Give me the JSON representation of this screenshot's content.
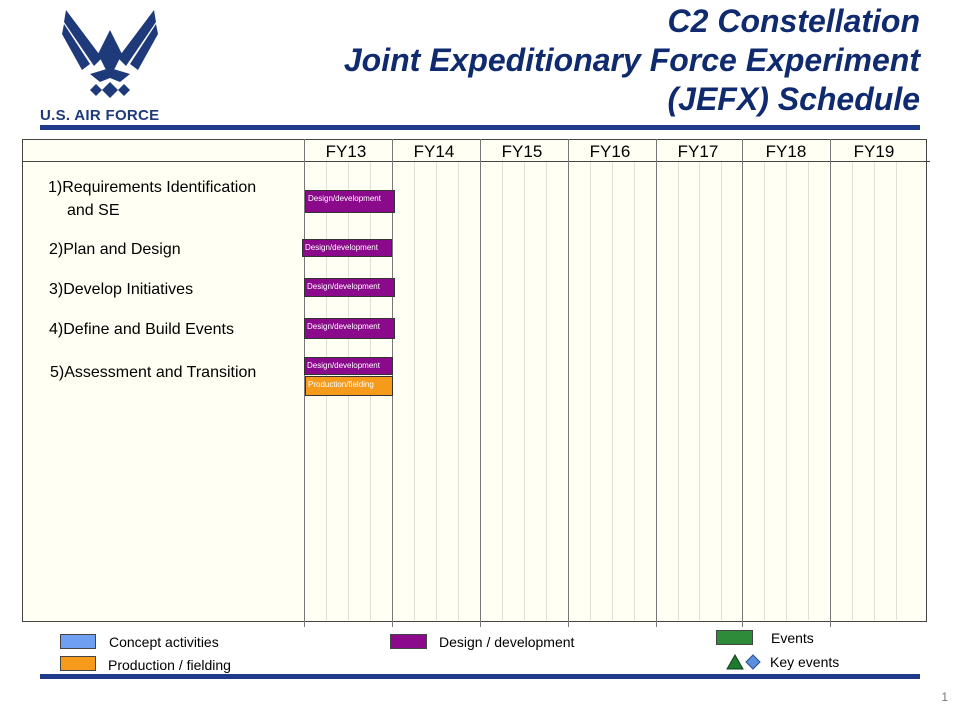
{
  "logo": {
    "text": "U.S. AIR FORCE"
  },
  "title": {
    "line1": "C2 Constellation",
    "line2": "Joint Expeditionary Force Experiment",
    "line3": "(JEFX) Schedule"
  },
  "fiscal_years": [
    "FY13",
    "FY14",
    "FY15",
    "FY16",
    "FY17",
    "FY18",
    "FY19"
  ],
  "tasks": [
    {
      "label_line1": "1)Requirements Identification",
      "label_line2": "and SE",
      "bar": "Design/development"
    },
    {
      "label": "2)Plan and Design",
      "bar": "Design/development"
    },
    {
      "label": "3)Develop Initiatives",
      "bar": "Design/development"
    },
    {
      "label": "4)Define and Build Events",
      "bar": "Design/development"
    },
    {
      "label": "5)Assessment and Transition",
      "bar": "Design/development",
      "bar2": "Production/fielding"
    }
  ],
  "legend": {
    "concept": "Concept activities",
    "production": "Production / fielding",
    "design": "Design / development",
    "events": "Events",
    "key_events": "Key events"
  },
  "colors": {
    "concept": "#6f9ff0",
    "production": "#f59a1a",
    "design": "#8b0a8b",
    "events": "#2e8b3a",
    "key_event_triangle": "#1e7a2e",
    "key_event_diamond": "#5b8fe0",
    "title": "#0f2a6e",
    "rule": "#1f3a8a"
  },
  "page_number": "1"
}
